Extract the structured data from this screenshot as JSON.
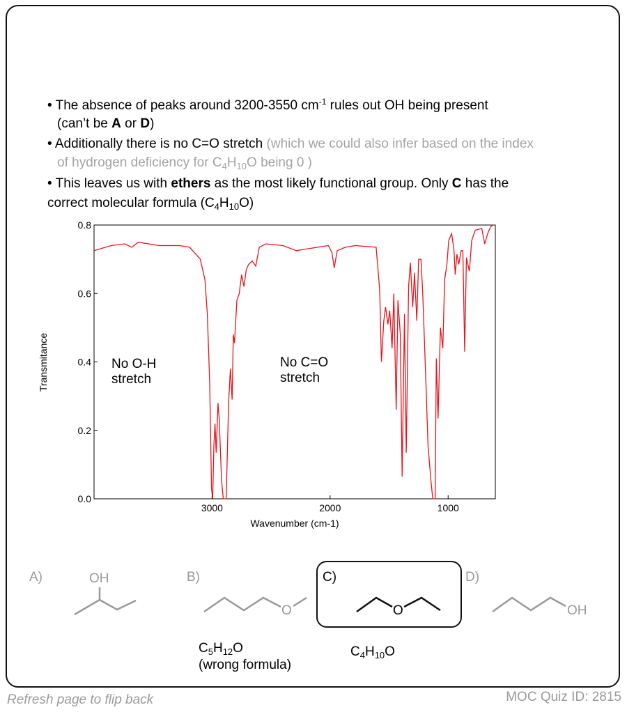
{
  "bullets": [
    [
      "• The absence of peaks around 3200-3550 cm",
      "-1",
      " rules out OH being present"
    ],
    [
      "(can’t be ",
      "A",
      " or ",
      "D",
      ")"
    ],
    [
      "• Additionally there is no C=O stretch ",
      "(which we could also infer based on the index"
    ],
    [
      "of hydrogen deficiency for C",
      "4",
      "H",
      "10",
      "O being 0 )"
    ],
    [
      "• This leaves us with ",
      "ethers",
      " as the most likely functional group. Only ",
      "C",
      " has the"
    ],
    [
      "correct molecular formula (C",
      "4",
      "H",
      "10",
      "O)"
    ]
  ],
  "chart_data": {
    "type": "line",
    "xlabel": "Wavenumber (cm-1)",
    "ylabel": "Transmitance",
    "color": "#e8141c",
    "xlim": [
      4000,
      600
    ],
    "ylim": [
      0,
      0.8
    ],
    "xticks": [
      3000,
      2000,
      1000
    ],
    "yticks": [
      {
        "value": 0,
        "label": "0.0"
      },
      0.2,
      0.4,
      0.6,
      0.8
    ],
    "annotations": [
      {
        "lines": [
          "No O-H",
          "stretch"
        ]
      },
      {
        "lines": [
          "No C=O",
          "stretch"
        ]
      }
    ],
    "x": [
      4000,
      3855,
      3740,
      3680,
      3625,
      3450,
      3275,
      3190,
      3100,
      3060,
      3040,
      3020,
      3005,
      2995,
      2985,
      2975,
      2965,
      2950,
      2940,
      2920,
      2905,
      2880,
      2860,
      2845,
      2830,
      2820,
      2810,
      2790,
      2770,
      2750,
      2730,
      2710,
      2690,
      2660,
      2630,
      2600,
      2545,
      2400,
      2285,
      2200,
      2015,
      1985,
      1965,
      1940,
      1870,
      1785,
      1610,
      1580,
      1565,
      1545,
      1530,
      1510,
      1495,
      1475,
      1460,
      1440,
      1425,
      1405,
      1390,
      1370,
      1355,
      1335,
      1320,
      1300,
      1285,
      1265,
      1250,
      1230,
      1215,
      1190,
      1170,
      1145,
      1130,
      1110,
      1100,
      1085,
      1065,
      1045,
      1030,
      1010,
      995,
      970,
      950,
      940,
      925,
      910,
      890,
      875,
      860,
      845,
      820,
      800,
      770,
      715,
      690,
      665,
      640,
      620
    ],
    "values": [
      0.725,
      0.74,
      0.745,
      0.735,
      0.75,
      0.74,
      0.74,
      0.735,
      0.7,
      0.64,
      0.54,
      0.34,
      0.03,
      0.0,
      0.155,
      0.22,
      0.135,
      0.28,
      0.235,
      0.055,
      0.0,
      0.0,
      0.28,
      0.38,
      0.29,
      0.48,
      0.455,
      0.58,
      0.6,
      0.655,
      0.62,
      0.67,
      0.685,
      0.695,
      0.68,
      0.735,
      0.745,
      0.74,
      0.725,
      0.73,
      0.74,
      0.72,
      0.675,
      0.725,
      0.735,
      0.74,
      0.735,
      0.61,
      0.4,
      0.52,
      0.56,
      0.51,
      0.55,
      0.44,
      0.6,
      0.26,
      0.58,
      0.48,
      0.065,
      0.54,
      0.135,
      0.62,
      0.69,
      0.56,
      0.66,
      0.52,
      0.7,
      0.7,
      0.6,
      0.36,
      0.155,
      0.05,
      0.0,
      0.0,
      0.41,
      0.235,
      0.5,
      0.44,
      0.64,
      0.685,
      0.755,
      0.775,
      0.725,
      0.655,
      0.715,
      0.685,
      0.725,
      0.725,
      0.43,
      0.705,
      0.665,
      0.755,
      0.785,
      0.79,
      0.745,
      0.775,
      0.795,
      0.8
    ]
  },
  "options": [
    {
      "label": "A)",
      "atoms": [
        "OH"
      ]
    },
    {
      "label": "B)",
      "atoms": [
        "O"
      ],
      "formula": [
        "C",
        "5",
        "H",
        "12",
        "O"
      ],
      "note": "(wrong formula)"
    },
    {
      "label": "C)",
      "atoms": [
        "O"
      ],
      "formula": [
        "C",
        "4",
        "H",
        "10",
        "O"
      ]
    },
    {
      "label": "D)",
      "atoms": [
        "OH"
      ]
    }
  ],
  "footer": {
    "left": "Refresh page to flip back",
    "right": "MOC Quiz ID: 2815"
  }
}
